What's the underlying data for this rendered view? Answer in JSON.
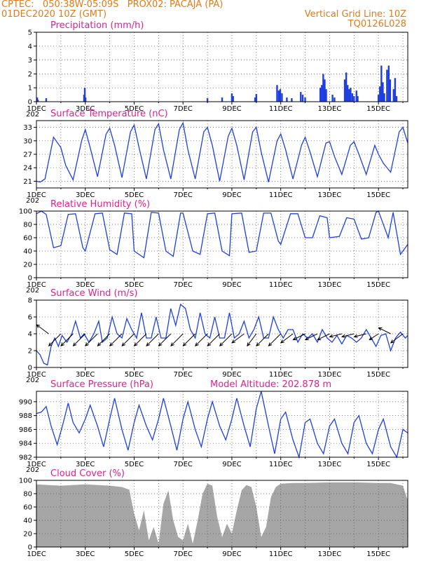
{
  "header": {
    "left_line1": "CPTEC:   050:38W-05:09S   PROX02: PACAJA (PA)",
    "left_line2": "01DEC2020 10Z (GMT)",
    "right_line1": "Vertical Grid Line: 10Z",
    "right_line2": "TQ0126L028"
  },
  "colors": {
    "header": "#e07b1a",
    "panel_title": "#e0208c",
    "line": "#1f3fe0",
    "bar": "#1f3fe0",
    "cloud": "#a6a6a6",
    "arrow": "#000000"
  },
  "chart_data": [
    {
      "type": "bar",
      "title": "Precipitation (mm/h)",
      "ylim": [
        0,
        5
      ],
      "yticks": [
        "0",
        "1",
        "2",
        "3",
        "4",
        "5"
      ],
      "xticks": [
        "1DEC",
        "3DEC",
        "5DEC",
        "7DEC",
        "9DEC",
        "11DEC",
        "13DEC",
        "15DEC"
      ],
      "x_first_label_extra": "202",
      "grid": true,
      "x_unit": "days since 01DEC2020 10Z",
      "bars": [
        [
          0.03,
          0.3
        ],
        [
          0.06,
          0.15
        ],
        [
          0.4,
          0.25
        ],
        [
          1.95,
          0.5
        ],
        [
          1.98,
          1.0
        ],
        [
          2.01,
          0.3
        ],
        [
          7.0,
          0.25
        ],
        [
          7.6,
          0.3
        ],
        [
          8.0,
          0.6
        ],
        [
          8.05,
          0.4
        ],
        [
          8.95,
          0.3
        ],
        [
          9.0,
          0.55
        ],
        [
          9.85,
          1.2
        ],
        [
          9.92,
          0.8
        ],
        [
          9.98,
          0.9
        ],
        [
          10.05,
          0.6
        ],
        [
          10.25,
          0.3
        ],
        [
          10.45,
          0.25
        ],
        [
          10.82,
          0.7
        ],
        [
          10.9,
          0.5
        ],
        [
          11.0,
          0.3
        ],
        [
          11.62,
          1.0
        ],
        [
          11.68,
          1.2
        ],
        [
          11.74,
          2.0
        ],
        [
          11.8,
          1.6
        ],
        [
          11.86,
          0.9
        ],
        [
          12.12,
          0.5
        ],
        [
          12.2,
          0.3
        ],
        [
          12.62,
          1.6
        ],
        [
          12.68,
          2.1
        ],
        [
          12.74,
          1.2
        ],
        [
          12.8,
          0.9
        ],
        [
          12.86,
          1.0
        ],
        [
          12.93,
          0.6
        ],
        [
          13.0,
          0.4
        ],
        [
          13.1,
          0.8
        ],
        [
          13.15,
          0.4
        ],
        [
          14.0,
          0.5
        ],
        [
          14.06,
          1.1
        ],
        [
          14.12,
          2.6
        ],
        [
          14.18,
          1.4
        ],
        [
          14.24,
          0.6
        ],
        [
          14.35,
          2.3
        ],
        [
          14.42,
          2.6
        ],
        [
          14.48,
          1.6
        ],
        [
          14.62,
          0.9
        ],
        [
          14.68,
          1.7
        ],
        [
          14.74,
          0.4
        ]
      ]
    },
    {
      "type": "line",
      "title": "Surface Temperature (nC)",
      "ylim": [
        19.5,
        34.5
      ],
      "yticks": [
        "21",
        "24",
        "27",
        "30",
        "33"
      ],
      "xticks": [
        "1DEC",
        "3DEC",
        "5DEC",
        "7DEC",
        "9DEC",
        "11DEC",
        "13DEC",
        "15DEC"
      ],
      "x_first_label_extra": "202",
      "grid": true,
      "x_unit": "days since 01DEC2020 10Z",
      "x": [
        0,
        0.15,
        0.35,
        0.7,
        1.0,
        1.2,
        1.5,
        1.85,
        2.0,
        2.2,
        2.5,
        2.85,
        3.0,
        3.2,
        3.5,
        3.85,
        4.0,
        4.2,
        4.5,
        4.85,
        5.0,
        5.2,
        5.5,
        5.85,
        6.0,
        6.2,
        6.5,
        6.85,
        7.0,
        7.2,
        7.5,
        7.85,
        8.0,
        8.2,
        8.5,
        8.85,
        9.0,
        9.2,
        9.5,
        9.85,
        10.0,
        10.2,
        10.5,
        10.85,
        11.0,
        11.2,
        11.5,
        11.85,
        12.0,
        12.2,
        12.5,
        12.85,
        13.0,
        13.2,
        13.5,
        13.85,
        14.0,
        14.2,
        14.5,
        14.85,
        15.0,
        15.2
      ],
      "values": [
        21.0,
        20.8,
        21.5,
        30.8,
        28.5,
        24.5,
        21.3,
        30.0,
        32.5,
        28.5,
        22.0,
        31.5,
        32.8,
        29.0,
        21.8,
        32.0,
        33.5,
        28.5,
        21.5,
        32.5,
        33.8,
        28.0,
        21.5,
        32.5,
        34.0,
        28.0,
        21.5,
        32.0,
        33.0,
        29.0,
        21.0,
        31.0,
        32.8,
        29.0,
        21.3,
        32.0,
        33.0,
        27.5,
        20.8,
        30.0,
        31.5,
        28.0,
        21.5,
        29.0,
        30.8,
        27.5,
        22.0,
        29.5,
        29.8,
        26.5,
        22.5,
        29.0,
        29.8,
        27.0,
        22.5,
        29.0,
        27.0,
        25.0,
        23.0,
        32.0,
        33.0,
        29.5
      ]
    },
    {
      "type": "line",
      "title": "Relative Humidity (%)",
      "ylim": [
        0,
        100
      ],
      "yticks": [
        "0",
        "20",
        "40",
        "60",
        "80",
        "100"
      ],
      "xticks": [
        "1DEC",
        "3DEC",
        "5DEC",
        "7DEC",
        "9DEC",
        "11DEC",
        "13DEC",
        "15DEC"
      ],
      "x_first_label_extra": "202",
      "grid": true,
      "x_unit": "days since 01DEC2020 10Z",
      "x": [
        0,
        0.2,
        0.4,
        0.7,
        1.0,
        1.3,
        1.6,
        1.9,
        2.0,
        2.4,
        2.7,
        3.0,
        3.3,
        3.6,
        3.9,
        4.0,
        4.4,
        4.7,
        5.0,
        5.3,
        5.6,
        5.9,
        6.0,
        6.4,
        6.7,
        7.0,
        7.3,
        7.6,
        7.9,
        8.0,
        8.4,
        8.7,
        9.0,
        9.3,
        9.6,
        9.9,
        10.0,
        10.4,
        10.7,
        11.0,
        11.3,
        11.6,
        11.9,
        12.0,
        12.4,
        12.7,
        13.0,
        13.3,
        13.6,
        13.9,
        14.0,
        14.4,
        14.6,
        14.9,
        15.0,
        15.2
      ],
      "values": [
        96,
        100,
        95,
        45,
        48,
        95,
        96,
        45,
        40,
        96,
        97,
        42,
        35,
        97,
        96,
        40,
        30,
        98,
        97,
        40,
        32,
        97,
        97,
        40,
        35,
        96,
        97,
        40,
        33,
        96,
        97,
        38,
        40,
        97,
        97,
        55,
        50,
        96,
        96,
        60,
        60,
        93,
        90,
        60,
        62,
        90,
        88,
        58,
        60,
        98,
        100,
        60,
        98,
        35,
        40,
        50
      ]
    },
    {
      "type": "line",
      "title": "Surface Wind (m/s)",
      "ylim": [
        0,
        8
      ],
      "yticks": [
        "0",
        "2",
        "4",
        "6",
        "8"
      ],
      "xticks": [
        "1DEC",
        "3DEC",
        "5DEC",
        "7DEC",
        "9DEC",
        "11DEC",
        "13DEC",
        "15DEC"
      ],
      "x_first_label_extra": "202",
      "grid": true,
      "x_unit": "days since 01DEC2020 10Z",
      "x": [
        0,
        0.15,
        0.3,
        0.45,
        0.6,
        0.75,
        0.9,
        1.05,
        1.25,
        1.45,
        1.6,
        1.8,
        1.95,
        2.15,
        2.35,
        2.55,
        2.7,
        2.9,
        3.1,
        3.3,
        3.5,
        3.7,
        3.9,
        4.1,
        4.3,
        4.5,
        4.7,
        4.9,
        5.1,
        5.3,
        5.5,
        5.7,
        5.9,
        6.1,
        6.3,
        6.5,
        6.7,
        6.9,
        7.1,
        7.3,
        7.5,
        7.7,
        7.9,
        8.1,
        8.3,
        8.5,
        8.7,
        8.9,
        9.1,
        9.3,
        9.5,
        9.7,
        9.9,
        10.1,
        10.3,
        10.5,
        10.7,
        10.9,
        11.1,
        11.3,
        11.5,
        11.7,
        11.9,
        12.1,
        12.3,
        12.5,
        12.7,
        12.9,
        13.1,
        13.3,
        13.5,
        13.7,
        13.9,
        14.1,
        14.3,
        14.5,
        14.7,
        14.9,
        15.1,
        15.2
      ],
      "values": [
        2.0,
        1.5,
        0.5,
        0.3,
        2.5,
        3.5,
        2.5,
        3.8,
        3.0,
        4.0,
        5.5,
        3.5,
        4.0,
        3.0,
        4.0,
        5.5,
        3.0,
        3.5,
        6.0,
        4.0,
        3.5,
        5.8,
        4.5,
        3.5,
        6.5,
        3.5,
        3.5,
        6.0,
        3.5,
        3.5,
        7.0,
        5.0,
        7.5,
        7.0,
        4.5,
        3.5,
        6.5,
        4.0,
        3.5,
        6.0,
        3.5,
        3.5,
        6.5,
        3.5,
        4.0,
        5.5,
        3.5,
        4.5,
        6.0,
        3.5,
        3.5,
        6.0,
        4.5,
        3.5,
        4.5,
        4.5,
        3.0,
        4.0,
        3.5,
        4.0,
        3.0,
        4.5,
        3.5,
        3.0,
        3.8,
        2.8,
        3.8,
        3.5,
        3.0,
        3.5,
        4.5,
        3.5,
        2.5,
        3.8,
        4.0,
        2.0,
        3.5,
        4.2,
        3.5,
        3.8
      ],
      "arrows": [
        [
          0.5,
          -4,
          3
        ],
        [
          1.0,
          -4,
          -4
        ],
        [
          1.5,
          -4,
          -4
        ],
        [
          2.0,
          -4,
          -4
        ],
        [
          2.5,
          -4,
          -4
        ],
        [
          3.0,
          -4,
          -4
        ],
        [
          3.5,
          -4,
          -4
        ],
        [
          4.0,
          -4,
          -4
        ],
        [
          4.5,
          -4,
          -4
        ],
        [
          5.0,
          -4,
          -4
        ],
        [
          5.5,
          -4,
          -4
        ],
        [
          6.0,
          -4,
          -4
        ],
        [
          6.5,
          -4,
          -4
        ],
        [
          7.0,
          -4,
          -4
        ],
        [
          7.5,
          -4,
          -4
        ],
        [
          8.0,
          -4,
          -4
        ],
        [
          8.5,
          -4,
          -3
        ],
        [
          9.0,
          -3,
          -4
        ],
        [
          9.5,
          -4,
          -4
        ],
        [
          10.0,
          -4,
          -4
        ],
        [
          10.5,
          -4,
          -3
        ],
        [
          11.0,
          -4,
          -2
        ],
        [
          11.5,
          -4,
          -2
        ],
        [
          12.0,
          -4,
          -2
        ],
        [
          12.5,
          -4,
          -1
        ],
        [
          13.0,
          -4,
          -1
        ],
        [
          13.5,
          -4,
          -1
        ],
        [
          14.0,
          -3,
          -2
        ],
        [
          14.5,
          -4,
          2
        ],
        [
          15.0,
          -4,
          -3
        ]
      ]
    },
    {
      "type": "line",
      "title": "Surface Pressure (hPa)",
      "subtitle": "Model Altitude: 202.878  m",
      "ylim": [
        982,
        991.5
      ],
      "yticks": [
        "982",
        "984",
        "986",
        "988",
        "990"
      ],
      "xticks": [
        "1DEC",
        "3DEC",
        "5DEC",
        "7DEC",
        "9DEC",
        "11DEC",
        "13DEC",
        "15DEC"
      ],
      "x_first_label_extra": "202",
      "grid": true,
      "x_unit": "days since 01DEC2020 10Z",
      "x": [
        0,
        0.2,
        0.4,
        0.6,
        0.85,
        1.1,
        1.3,
        1.5,
        1.75,
        2.0,
        2.2,
        2.5,
        2.75,
        3.0,
        3.2,
        3.5,
        3.75,
        4.0,
        4.2,
        4.5,
        4.75,
        5.0,
        5.2,
        5.5,
        5.75,
        6.0,
        6.2,
        6.5,
        6.75,
        7.0,
        7.2,
        7.5,
        7.75,
        8.0,
        8.2,
        8.5,
        8.75,
        9.0,
        9.2,
        9.5,
        9.75,
        10.0,
        10.2,
        10.5,
        10.75,
        11.0,
        11.2,
        11.5,
        11.75,
        12.0,
        12.2,
        12.5,
        12.75,
        13.0,
        13.2,
        13.5,
        13.75,
        14.0,
        14.2,
        14.5,
        14.75,
        15.0,
        15.2
      ],
      "values": [
        988.3,
        988.5,
        989.3,
        986.5,
        983.8,
        987.0,
        989.8,
        987.0,
        985.5,
        987.5,
        989.5,
        986.5,
        983.5,
        987.5,
        990.5,
        986.0,
        983.0,
        987.0,
        989.5,
        986.5,
        984.5,
        987.5,
        990.5,
        986.5,
        983.0,
        987.5,
        990.0,
        986.0,
        983.5,
        987.5,
        990.0,
        986.5,
        984.5,
        987.5,
        990.5,
        986.5,
        983.5,
        989.0,
        991.5,
        986.5,
        982.5,
        987.5,
        988.5,
        984.5,
        982.0,
        987.0,
        987.5,
        984.0,
        982.5,
        986.5,
        987.5,
        984.0,
        982.5,
        987.0,
        988.0,
        984.0,
        982.5,
        986.0,
        987.5,
        983.5,
        982.0,
        986.0,
        985.5
      ]
    },
    {
      "type": "area",
      "title": "Cloud Cover (%)",
      "ylim": [
        0,
        100
      ],
      "yticks": [
        "0",
        "20",
        "40",
        "60",
        "80",
        "100"
      ],
      "xticks": [
        "1DEC",
        "3DEC",
        "5DEC",
        "7DEC",
        "9DEC",
        "11DEC",
        "13DEC",
        "15DEC"
      ],
      "grid": true,
      "x_unit": "days since 01DEC2020 10Z",
      "x": [
        0,
        1,
        2,
        3,
        3.5,
        3.8,
        4.0,
        4.2,
        4.4,
        4.6,
        4.8,
        5.0,
        5.2,
        5.4,
        5.6,
        5.8,
        6.0,
        6.2,
        6.4,
        6.6,
        6.8,
        7.0,
        7.2,
        7.4,
        7.6,
        7.8,
        8.0,
        8.2,
        8.4,
        8.6,
        8.8,
        9.0,
        9.2,
        9.4,
        9.6,
        9.8,
        10.0,
        10.5,
        11.0,
        12.0,
        13.0,
        14.0,
        14.5,
        15.0,
        15.2
      ],
      "values": [
        94,
        92,
        94,
        92,
        90,
        86,
        50,
        25,
        55,
        10,
        30,
        5,
        65,
        85,
        40,
        15,
        10,
        35,
        5,
        40,
        80,
        95,
        92,
        45,
        15,
        35,
        20,
        55,
        85,
        93,
        90,
        60,
        15,
        30,
        75,
        90,
        95,
        96,
        96,
        97,
        97,
        96,
        96,
        92,
        70
      ]
    }
  ]
}
